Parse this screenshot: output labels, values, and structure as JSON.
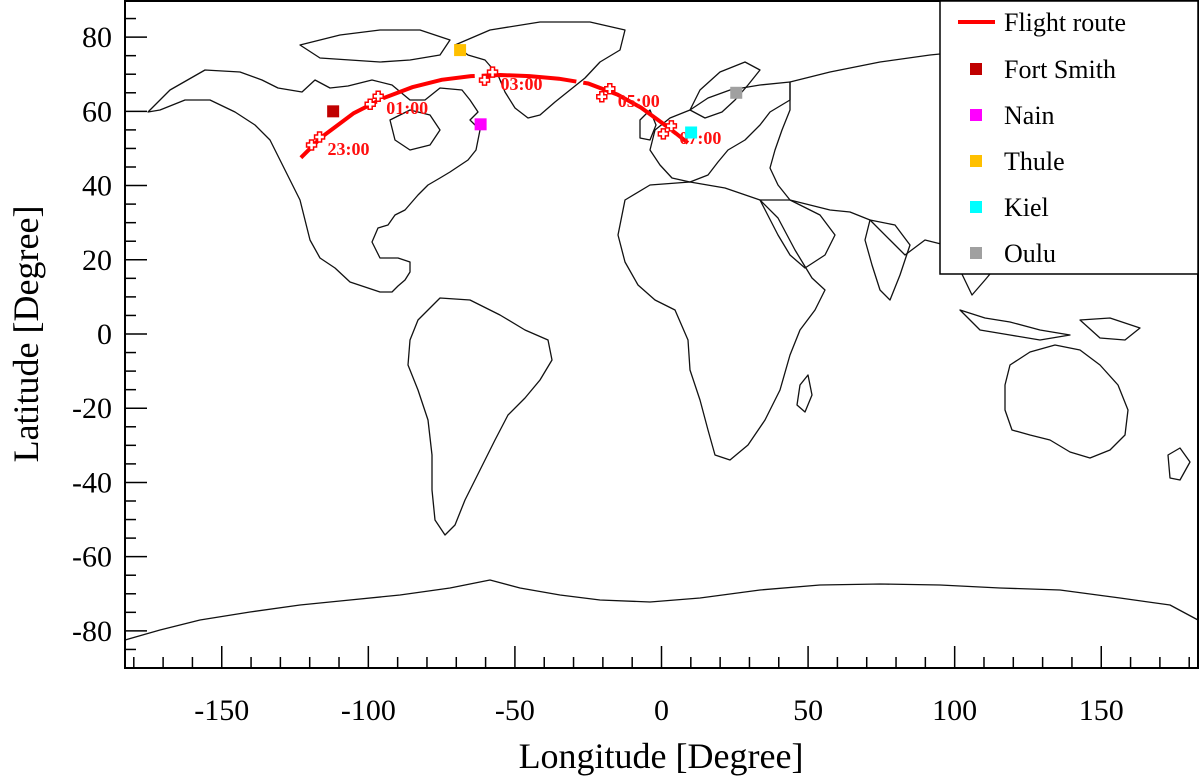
{
  "chart_data": {
    "type": "scatter",
    "xlabel": "Longitude [Degree]",
    "ylabel": "Latitude [Degree]",
    "xlim": [
      -183,
      183
    ],
    "ylim": [
      -90,
      90
    ],
    "xticks": [
      -150,
      -100,
      -50,
      0,
      50,
      100,
      150
    ],
    "yticks": [
      80,
      60,
      40,
      20,
      0,
      -20,
      -40,
      -60,
      -80
    ],
    "grid": false,
    "legend_position": "top-right",
    "route": {
      "name": "Flight route",
      "color": "#ff0000",
      "points": [
        [
          -123,
          47.5
        ],
        [
          -116,
          53
        ],
        [
          -105,
          59.5
        ],
        [
          -95,
          63.5
        ],
        [
          -85,
          66.5
        ],
        [
          -75,
          68.5
        ],
        [
          -65,
          69.5
        ],
        [
          -55,
          69.8
        ],
        [
          -45,
          69.5
        ],
        [
          -35,
          68.8
        ],
        [
          -25,
          67.5
        ],
        [
          -15,
          64.5
        ],
        [
          -7,
          61
        ],
        [
          0,
          57
        ],
        [
          5,
          54
        ],
        [
          9,
          51.5
        ]
      ]
    },
    "time_markers": [
      {
        "label": "23:00",
        "lon": -118,
        "lat": 52
      },
      {
        "label": "01:00",
        "lon": -98,
        "lat": 63
      },
      {
        "label": "03:00",
        "lon": -59,
        "lat": 69.5
      },
      {
        "label": "05:00",
        "lon": -19,
        "lat": 65
      },
      {
        "label": "07:00",
        "lon": 2,
        "lat": 55
      }
    ],
    "stations": [
      {
        "name": "Fort Smith",
        "lon": -112,
        "lat": 60,
        "color": "#c00000"
      },
      {
        "name": "Nain",
        "lon": -61.7,
        "lat": 56.5,
        "color": "#ff00ff"
      },
      {
        "name": "Thule",
        "lon": -68.7,
        "lat": 76.5,
        "color": "#ffc000"
      },
      {
        "name": "Kiel",
        "lon": 10.1,
        "lat": 54.3,
        "color": "#00ffff"
      },
      {
        "name": "Oulu",
        "lon": 25.5,
        "lat": 65,
        "color": "#a0a0a0"
      }
    ]
  }
}
